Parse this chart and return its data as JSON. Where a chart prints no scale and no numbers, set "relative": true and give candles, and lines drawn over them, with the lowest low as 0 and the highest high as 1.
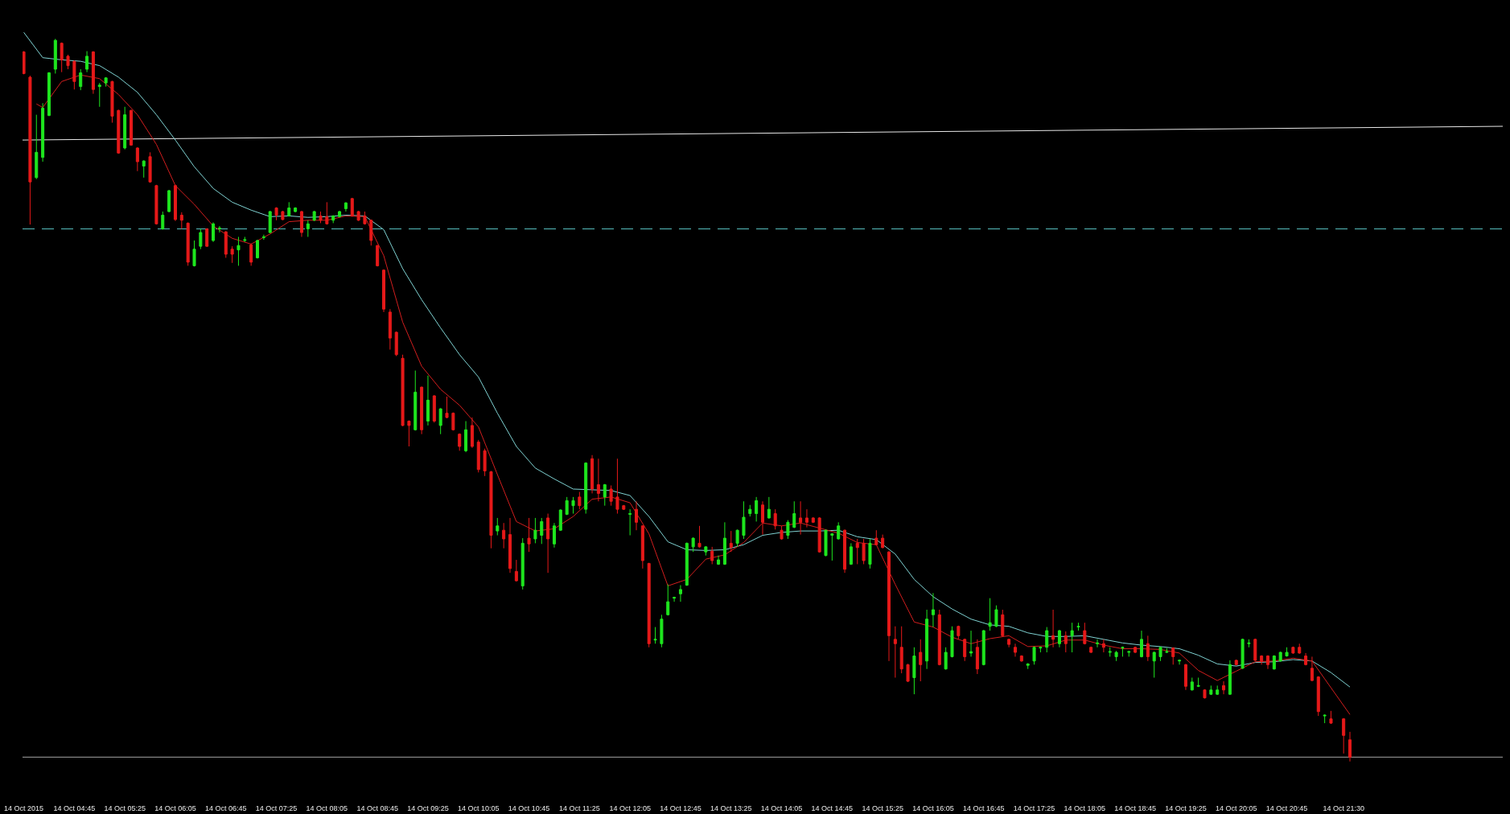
{
  "chart_data": {
    "type": "candlestick",
    "relative": true,
    "x": [
      "2015-10-14T04:05",
      "2015-10-14T04:10",
      "2015-10-14T04:15",
      "2015-10-14T04:20",
      "2015-10-14T04:25",
      "2015-10-14T04:30",
      "2015-10-14T04:35",
      "2015-10-14T04:40",
      "2015-10-14T04:45",
      "2015-10-14T04:50",
      "2015-10-14T04:55",
      "2015-10-14T05:00",
      "2015-10-14T05:05",
      "2015-10-14T05:10",
      "2015-10-14T05:15",
      "2015-10-14T05:20",
      "2015-10-14T05:25",
      "2015-10-14T05:30",
      "2015-10-14T05:35",
      "2015-10-14T05:40",
      "2015-10-14T05:45",
      "2015-10-14T05:50",
      "2015-10-14T05:55",
      "2015-10-14T06:00",
      "2015-10-14T06:05",
      "2015-10-14T06:10",
      "2015-10-14T06:15",
      "2015-10-14T06:20",
      "2015-10-14T06:25",
      "2015-10-14T06:30",
      "2015-10-14T06:35",
      "2015-10-14T06:40",
      "2015-10-14T06:45",
      "2015-10-14T06:50",
      "2015-10-14T06:55",
      "2015-10-14T07:00",
      "2015-10-14T07:05",
      "2015-10-14T07:10",
      "2015-10-14T07:15",
      "2015-10-14T07:20",
      "2015-10-14T07:25",
      "2015-10-14T07:30",
      "2015-10-14T07:35",
      "2015-10-14T07:40",
      "2015-10-14T07:45",
      "2015-10-14T07:50",
      "2015-10-14T07:55",
      "2015-10-14T08:00",
      "2015-10-14T08:05",
      "2015-10-14T08:10",
      "2015-10-14T08:15",
      "2015-10-14T08:20",
      "2015-10-14T08:25",
      "2015-10-14T08:30",
      "2015-10-14T08:35",
      "2015-10-14T08:40",
      "2015-10-14T08:45",
      "2015-10-14T08:50",
      "2015-10-14T08:55",
      "2015-10-14T09:00",
      "2015-10-14T09:05",
      "2015-10-14T09:10",
      "2015-10-14T09:15",
      "2015-10-14T09:20",
      "2015-10-14T09:25",
      "2015-10-14T09:30",
      "2015-10-14T09:35",
      "2015-10-14T09:40",
      "2015-10-14T09:45",
      "2015-10-14T09:50",
      "2015-10-14T09:55",
      "2015-10-14T10:00",
      "2015-10-14T10:05",
      "2015-10-14T10:10",
      "2015-10-14T10:15",
      "2015-10-14T10:20",
      "2015-10-14T10:25",
      "2015-10-14T10:30",
      "2015-10-14T10:35",
      "2015-10-14T10:40",
      "2015-10-14T10:45",
      "2015-10-14T10:50",
      "2015-10-14T10:55",
      "2015-10-14T11:00",
      "2015-10-14T11:05",
      "2015-10-14T11:10",
      "2015-10-14T11:15",
      "2015-10-14T11:20",
      "2015-10-14T11:25",
      "2015-10-14T11:30",
      "2015-10-14T11:35",
      "2015-10-14T11:40",
      "2015-10-14T11:45",
      "2015-10-14T11:50",
      "2015-10-14T11:55",
      "2015-10-14T12:00",
      "2015-10-14T12:05",
      "2015-10-14T12:10",
      "2015-10-14T12:15",
      "2015-10-14T12:20",
      "2015-10-14T12:25",
      "2015-10-14T12:30",
      "2015-10-14T12:35",
      "2015-10-14T12:40",
      "2015-10-14T12:45",
      "2015-10-14T12:50",
      "2015-10-14T12:55",
      "2015-10-14T13:00",
      "2015-10-14T13:05",
      "2015-10-14T13:10",
      "2015-10-14T13:15",
      "2015-10-14T13:20",
      "2015-10-14T13:25",
      "2015-10-14T13:30",
      "2015-10-14T13:35",
      "2015-10-14T13:40",
      "2015-10-14T13:45",
      "2015-10-14T13:50",
      "2015-10-14T13:55",
      "2015-10-14T14:00",
      "2015-10-14T14:05",
      "2015-10-14T14:10",
      "2015-10-14T14:15",
      "2015-10-14T14:20",
      "2015-10-14T14:25",
      "2015-10-14T14:30",
      "2015-10-14T14:35",
      "2015-10-14T14:40",
      "2015-10-14T14:45",
      "2015-10-14T14:50",
      "2015-10-14T14:55",
      "2015-10-14T15:00",
      "2015-10-14T15:05",
      "2015-10-14T15:10",
      "2015-10-14T15:15",
      "2015-10-14T15:20",
      "2015-10-14T15:25",
      "2015-10-14T15:30",
      "2015-10-14T15:35",
      "2015-10-14T15:40",
      "2015-10-14T15:45",
      "2015-10-14T15:50",
      "2015-10-14T15:55",
      "2015-10-14T16:00",
      "2015-10-14T16:05",
      "2015-10-14T16:10",
      "2015-10-14T16:15",
      "2015-10-14T16:20",
      "2015-10-14T16:25",
      "2015-10-14T16:30",
      "2015-10-14T16:35",
      "2015-10-14T16:40",
      "2015-10-14T16:45",
      "2015-10-14T16:50",
      "2015-10-14T16:55",
      "2015-10-14T17:00",
      "2015-10-14T17:05",
      "2015-10-14T17:10",
      "2015-10-14T17:15",
      "2015-10-14T17:20",
      "2015-10-14T17:25",
      "2015-10-14T17:30",
      "2015-10-14T17:35",
      "2015-10-14T17:40",
      "2015-10-14T17:45",
      "2015-10-14T17:50",
      "2015-10-14T17:55",
      "2015-10-14T18:00",
      "2015-10-14T18:05",
      "2015-10-14T18:10",
      "2015-10-14T18:15",
      "2015-10-14T18:20",
      "2015-10-14T18:25",
      "2015-10-14T18:30",
      "2015-10-14T18:35",
      "2015-10-14T18:40",
      "2015-10-14T18:45",
      "2015-10-14T18:50",
      "2015-10-14T18:55",
      "2015-10-14T19:00",
      "2015-10-14T19:05",
      "2015-10-14T19:10",
      "2015-10-14T19:15",
      "2015-10-14T19:20",
      "2015-10-14T19:25",
      "2015-10-14T19:30",
      "2015-10-14T19:35",
      "2015-10-14T19:40",
      "2015-10-14T19:45",
      "2015-10-14T19:50",
      "2015-10-14T19:55",
      "2015-10-14T20:00",
      "2015-10-14T20:05",
      "2015-10-14T20:10",
      "2015-10-14T20:15",
      "2015-10-14T20:20",
      "2015-10-14T20:25",
      "2015-10-14T20:30",
      "2015-10-14T20:35",
      "2015-10-14T20:40",
      "2015-10-14T20:45",
      "2015-10-14T20:50",
      "2015-10-14T20:55",
      "2015-10-14T21:00",
      "2015-10-14T21:05",
      "2015-10-14T21:10",
      "2015-10-14T21:15",
      "2015-10-14T21:20",
      "2015-10-14T21:30",
      "2015-10-14T21:35"
    ],
    "ohlc": [
      [
        0.982,
        0.983,
        0.951,
        0.952
      ],
      [
        0.947,
        0.949,
        0.743,
        0.802
      ],
      [
        0.808,
        0.895,
        0.806,
        0.843
      ],
      [
        0.836,
        0.911,
        0.83,
        0.904
      ],
      [
        0.894,
        0.954,
        0.893,
        0.953
      ],
      [
        0.958,
        1,
        0.952,
        0.998
      ],
      [
        0.994,
        0.995,
        0.954,
        0.971
      ],
      [
        0.976,
        0.978,
        0.958,
        0.963
      ],
      [
        0.969,
        0.97,
        0.93,
        0.941
      ],
      [
        0.934,
        0.958,
        0.929,
        0.953
      ],
      [
        0.958,
        0.983,
        0.954,
        0.976
      ],
      [
        0.982,
        0.983,
        0.924,
        0.93
      ],
      [
        0.934,
        0.939,
        0.906,
        0.936
      ],
      [
        0.939,
        0.947,
        0.934,
        0.946
      ],
      [
        0.941,
        0.942,
        0.884,
        0.893
      ],
      [
        0.901,
        0.902,
        0.841,
        0.842
      ],
      [
        0.849,
        0.906,
        0.847,
        0.895
      ],
      [
        0.901,
        0.902,
        0.852,
        0.853
      ],
      [
        0.849,
        0.85,
        0.817,
        0.83
      ],
      [
        0.824,
        0.832,
        0.808,
        0.831
      ],
      [
        0.837,
        0.843,
        0.801,
        0.802
      ],
      [
        0.797,
        0.798,
        0.743,
        0.744
      ],
      [
        0.737,
        0.761,
        0.736,
        0.756
      ],
      [
        0.761,
        0.791,
        0.76,
        0.79
      ],
      [
        0.797,
        0.798,
        0.748,
        0.75
      ],
      [
        0.756,
        0.76,
        0.737,
        0.749
      ],
      [
        0.745,
        0.746,
        0.686,
        0.691
      ],
      [
        0.686,
        0.721,
        0.685,
        0.709
      ],
      [
        0.713,
        0.737,
        0.709,
        0.732
      ],
      [
        0.737,
        0.738,
        0.712,
        0.713
      ],
      [
        0.721,
        0.746,
        0.719,
        0.744
      ],
      [
        0.737,
        0.741,
        0.732,
        0.738
      ],
      [
        0.733,
        0.734,
        0.697,
        0.702
      ],
      [
        0.709,
        0.713,
        0.69,
        0.702
      ],
      [
        0.708,
        0.726,
        0.686,
        0.714
      ],
      [
        0.721,
        0.726,
        0.719,
        0.722
      ],
      [
        0.715,
        0.717,
        0.686,
        0.691
      ],
      [
        0.697,
        0.722,
        0.696,
        0.721
      ],
      [
        0.725,
        0.729,
        0.722,
        0.726
      ],
      [
        0.732,
        0.762,
        0.731,
        0.761
      ],
      [
        0.766,
        0.767,
        0.749,
        0.756
      ],
      [
        0.761,
        0.762,
        0.749,
        0.75
      ],
      [
        0.755,
        0.774,
        0.754,
        0.766
      ],
      [
        0.761,
        0.767,
        0.76,
        0.766
      ],
      [
        0.761,
        0.762,
        0.726,
        0.732
      ],
      [
        0.737,
        0.749,
        0.726,
        0.744
      ],
      [
        0.749,
        0.762,
        0.748,
        0.761
      ],
      [
        0.755,
        0.761,
        0.745,
        0.749
      ],
      [
        0.754,
        0.774,
        0.743,
        0.744
      ],
      [
        0.749,
        0.756,
        0.745,
        0.755
      ],
      [
        0.754,
        0.762,
        0.753,
        0.761
      ],
      [
        0.765,
        0.774,
        0.761,
        0.773
      ],
      [
        0.779,
        0.78,
        0.754,
        0.755
      ],
      [
        0.761,
        0.762,
        0.748,
        0.749
      ],
      [
        0.755,
        0.761,
        0.743,
        0.744
      ],
      [
        0.749,
        0.75,
        0.714,
        0.721
      ],
      [
        0.714,
        0.715,
        0.685,
        0.686
      ],
      [
        0.68,
        0.681,
        0.622,
        0.626
      ],
      [
        0.622,
        0.626,
        0.57,
        0.586
      ],
      [
        0.594,
        0.595,
        0.561,
        0.563
      ],
      [
        0.558,
        0.563,
        0.464,
        0.465
      ],
      [
        0.471,
        0.472,
        0.436,
        0.465
      ],
      [
        0.459,
        0.541,
        0.458,
        0.511
      ],
      [
        0.518,
        0.519,
        0.453,
        0.459
      ],
      [
        0.471,
        0.534,
        0.465,
        0.5
      ],
      [
        0.506,
        0.507,
        0.469,
        0.471
      ],
      [
        0.465,
        0.489,
        0.453,
        0.488
      ],
      [
        0.482,
        0.505,
        0.475,
        0.476
      ],
      [
        0.482,
        0.483,
        0.458,
        0.459
      ],
      [
        0.453,
        0.454,
        0.43,
        0.436
      ],
      [
        0.43,
        0.471,
        0.428,
        0.459
      ],
      [
        0.465,
        0.476,
        0.434,
        0.436
      ],
      [
        0.442,
        0.445,
        0.4,
        0.404
      ],
      [
        0.43,
        0.433,
        0.395,
        0.402
      ],
      [
        0.401,
        0.402,
        0.295,
        0.313
      ],
      [
        0.319,
        0.337,
        0.313,
        0.326
      ],
      [
        0.32,
        0.33,
        0.295,
        0.308
      ],
      [
        0.314,
        0.337,
        0.261,
        0.267
      ],
      [
        0.263,
        0.279,
        0.249,
        0.25
      ],
      [
        0.243,
        0.309,
        0.238,
        0.302
      ],
      [
        0.309,
        0.337,
        0.29,
        0.301
      ],
      [
        0.308,
        0.337,
        0.302,
        0.32
      ],
      [
        0.313,
        0.337,
        0.301,
        0.332
      ],
      [
        0.337,
        0.343,
        0.261,
        0.308
      ],
      [
        0.301,
        0.33,
        0.296,
        0.326
      ],
      [
        0.32,
        0.349,
        0.319,
        0.348
      ],
      [
        0.342,
        0.366,
        0.341,
        0.361
      ],
      [
        0.354,
        0.366,
        0.343,
        0.361
      ],
      [
        0.366,
        0.373,
        0.349,
        0.354
      ],
      [
        0.349,
        0.414,
        0.343,
        0.413
      ],
      [
        0.419,
        0.424,
        0.371,
        0.377
      ],
      [
        0.383,
        0.419,
        0.36,
        0.371
      ],
      [
        0.366,
        0.384,
        0.354,
        0.383
      ],
      [
        0.377,
        0.382,
        0.354,
        0.36
      ],
      [
        0.366,
        0.419,
        0.343,
        0.349
      ],
      [
        0.354,
        0.355,
        0.348,
        0.349
      ],
      [
        0.342,
        0.349,
        0.313,
        0.343
      ],
      [
        0.349,
        0.36,
        0.32,
        0.331
      ],
      [
        0.326,
        0.327,
        0.267,
        0.278
      ],
      [
        0.274,
        0.275,
        0.158,
        0.163
      ],
      [
        0.168,
        0.186,
        0.163,
        0.169
      ],
      [
        0.163,
        0.203,
        0.158,
        0.197
      ],
      [
        0.203,
        0.245,
        0.202,
        0.221
      ],
      [
        0.226,
        0.228,
        0.221,
        0.227
      ],
      [
        0.232,
        0.244,
        0.221,
        0.238
      ],
      [
        0.244,
        0.303,
        0.243,
        0.302
      ],
      [
        0.297,
        0.31,
        0.29,
        0.309
      ],
      [
        0.302,
        0.326,
        0.296,
        0.297
      ],
      [
        0.29,
        0.298,
        0.285,
        0.297
      ],
      [
        0.291,
        0.297,
        0.273,
        0.278
      ],
      [
        0.273,
        0.285,
        0.272,
        0.279
      ],
      [
        0.273,
        0.331,
        0.272,
        0.309
      ],
      [
        0.302,
        0.319,
        0.29,
        0.296
      ],
      [
        0.302,
        0.321,
        0.297,
        0.32
      ],
      [
        0.313,
        0.36,
        0.308,
        0.338
      ],
      [
        0.343,
        0.355,
        0.339,
        0.349
      ],
      [
        0.343,
        0.366,
        0.332,
        0.361
      ],
      [
        0.355,
        0.36,
        0.314,
        0.331
      ],
      [
        0.337,
        0.366,
        0.336,
        0.349
      ],
      [
        0.343,
        0.349,
        0.321,
        0.326
      ],
      [
        0.32,
        0.326,
        0.307,
        0.308
      ],
      [
        0.313,
        0.334,
        0.308,
        0.331
      ],
      [
        0.324,
        0.36,
        0.323,
        0.343
      ],
      [
        0.337,
        0.36,
        0.314,
        0.331
      ],
      [
        0.337,
        0.349,
        0.324,
        0.331
      ],
      [
        0.337,
        0.338,
        0.33,
        0.331
      ],
      [
        0.337,
        0.338,
        0.289,
        0.29
      ],
      [
        0.285,
        0.321,
        0.284,
        0.32
      ],
      [
        0.313,
        0.316,
        0.278,
        0.315
      ],
      [
        0.308,
        0.331,
        0.307,
        0.326
      ],
      [
        0.32,
        0.321,
        0.261,
        0.266
      ],
      [
        0.273,
        0.302,
        0.272,
        0.297
      ],
      [
        0.302,
        0.308,
        0.273,
        0.296
      ],
      [
        0.302,
        0.308,
        0.273,
        0.278
      ],
      [
        0.273,
        0.308,
        0.267,
        0.302
      ],
      [
        0.309,
        0.32,
        0.299,
        0.3
      ],
      [
        0.309,
        0.314,
        0.295,
        0.296
      ],
      [
        0.29,
        0.291,
        0.139,
        0.174
      ],
      [
        0.169,
        0.187,
        0.116,
        0.163
      ],
      [
        0.158,
        0.187,
        0.122,
        0.128
      ],
      [
        0.134,
        0.135,
        0.11,
        0.111
      ],
      [
        0.116,
        0.158,
        0.093,
        0.146
      ],
      [
        0.151,
        0.169,
        0.111,
        0.134
      ],
      [
        0.139,
        0.21,
        0.128,
        0.197
      ],
      [
        0.203,
        0.233,
        0.186,
        0.21
      ],
      [
        0.203,
        0.21,
        0.133,
        0.134
      ],
      [
        0.128,
        0.158,
        0.127,
        0.151
      ],
      [
        0.145,
        0.187,
        0.144,
        0.181
      ],
      [
        0.187,
        0.188,
        0.169,
        0.174
      ],
      [
        0.169,
        0.17,
        0.139,
        0.145
      ],
      [
        0.15,
        0.181,
        0.145,
        0.152
      ],
      [
        0.158,
        0.169,
        0.121,
        0.128
      ],
      [
        0.134,
        0.182,
        0.133,
        0.181
      ],
      [
        0.187,
        0.226,
        0.181,
        0.192
      ],
      [
        0.187,
        0.216,
        0.186,
        0.21
      ],
      [
        0.203,
        0.21,
        0.173,
        0.174
      ],
      [
        0.169,
        0.17,
        0.158,
        0.162
      ],
      [
        0.158,
        0.163,
        0.145,
        0.151
      ],
      [
        0.146,
        0.147,
        0.138,
        0.139
      ],
      [
        0.133,
        0.136,
        0.128,
        0.135
      ],
      [
        0.139,
        0.159,
        0.134,
        0.158
      ],
      [
        0.157,
        0.159,
        0.151,
        0.158
      ],
      [
        0.158,
        0.186,
        0.151,
        0.181
      ],
      [
        0.174,
        0.21,
        0.158,
        0.169
      ],
      [
        0.163,
        0.182,
        0.158,
        0.181
      ],
      [
        0.174,
        0.18,
        0.151,
        0.163
      ],
      [
        0.174,
        0.192,
        0.151,
        0.181
      ],
      [
        0.186,
        0.192,
        0.181,
        0.187
      ],
      [
        0.181,
        0.192,
        0.162,
        0.163
      ],
      [
        0.158,
        0.159,
        0.15,
        0.151
      ],
      [
        0.163,
        0.169,
        0.158,
        0.164
      ],
      [
        0.163,
        0.169,
        0.151,
        0.158
      ],
      [
        0.151,
        0.158,
        0.145,
        0.152
      ],
      [
        0.145,
        0.153,
        0.139,
        0.151
      ],
      [
        0.157,
        0.159,
        0.145,
        0.158
      ],
      [
        0.151,
        0.153,
        0.145,
        0.152
      ],
      [
        0.158,
        0.159,
        0.15,
        0.151
      ],
      [
        0.145,
        0.181,
        0.144,
        0.169
      ],
      [
        0.163,
        0.174,
        0.139,
        0.145
      ],
      [
        0.139,
        0.152,
        0.116,
        0.151
      ],
      [
        0.145,
        0.159,
        0.139,
        0.158
      ],
      [
        0.151,
        0.157,
        0.15,
        0.152
      ],
      [
        0.157,
        0.158,
        0.134,
        0.145
      ],
      [
        0.139,
        0.141,
        0.134,
        0.14
      ],
      [
        0.134,
        0.135,
        0.099,
        0.104
      ],
      [
        0.099,
        0.116,
        0.098,
        0.11
      ],
      [
        0.104,
        0.116,
        0.103,
        0.105
      ],
      [
        0.099,
        0.1,
        0.087,
        0.088
      ],
      [
        0.093,
        0.105,
        0.092,
        0.099
      ],
      [
        0.093,
        0.105,
        0.092,
        0.099
      ],
      [
        0.105,
        0.111,
        0.093,
        0.099
      ],
      [
        0.093,
        0.14,
        0.092,
        0.134
      ],
      [
        0.14,
        0.141,
        0.133,
        0.134
      ],
      [
        0.129,
        0.17,
        0.128,
        0.169
      ],
      [
        0.163,
        0.169,
        0.158,
        0.164
      ],
      [
        0.169,
        0.17,
        0.139,
        0.14
      ],
      [
        0.146,
        0.147,
        0.134,
        0.139
      ],
      [
        0.146,
        0.147,
        0.128,
        0.134
      ],
      [
        0.128,
        0.147,
        0.127,
        0.146
      ],
      [
        0.139,
        0.152,
        0.138,
        0.151
      ],
      [
        0.146,
        0.158,
        0.145,
        0.151
      ],
      [
        0.158,
        0.159,
        0.149,
        0.15
      ],
      [
        0.158,
        0.163,
        0.149,
        0.15
      ],
      [
        0.146,
        0.15,
        0.133,
        0.134
      ],
      [
        0.129,
        0.145,
        0.111,
        0.112
      ],
      [
        0.117,
        0.118,
        0.063,
        0.069
      ],
      [
        0.063,
        0.065,
        0.053,
        0.064
      ],
      [
        0.059,
        0.07,
        0.052,
        0.053
      ],
      [
        0.059,
        0.06,
        0.011,
        0.036
      ],
      [
        0.03,
        0.041,
        0,
        0.006
      ]
    ],
    "colors": [
      "#e61919",
      "#e61919",
      "#1ee61e",
      "#1ee61e",
      "#1ee61e",
      "#1ee61e",
      "#e61919",
      "#e61919",
      "#e61919",
      "#1ee61e",
      "#1ee61e",
      "#e61919",
      "#1ee61e",
      "#1ee61e",
      "#e61919",
      "#e61919",
      "#1ee61e",
      "#e61919",
      "#e61919",
      "#1ee61e",
      "#e61919",
      "#e61919",
      "#1ee61e",
      "#1ee61e",
      "#e61919",
      "#e61919",
      "#e61919",
      "#1ee61e",
      "#1ee61e",
      "#e61919",
      "#1ee61e",
      "#1ee61e",
      "#e61919",
      "#e61919",
      "#1ee61e",
      "#1ee61e",
      "#e61919",
      "#1ee61e",
      "#1ee61e",
      "#1ee61e",
      "#e61919",
      "#e61919",
      "#1ee61e",
      "#1ee61e",
      "#e61919",
      "#1ee61e",
      "#1ee61e",
      "#e61919",
      "#e61919",
      "#1ee61e",
      "#1ee61e",
      "#1ee61e",
      "#e61919",
      "#e61919",
      "#e61919",
      "#e61919",
      "#e61919",
      "#e61919",
      "#e61919",
      "#e61919",
      "#e61919",
      "#e61919",
      "#1ee61e",
      "#e61919",
      "#1ee61e",
      "#e61919",
      "#1ee61e",
      "#e61919",
      "#e61919",
      "#e61919",
      "#1ee61e",
      "#e61919",
      "#e61919",
      "#e61919",
      "#e61919",
      "#1ee61e",
      "#e61919",
      "#e61919",
      "#e61919",
      "#1ee61e",
      "#e61919",
      "#1ee61e",
      "#1ee61e",
      "#e61919",
      "#1ee61e",
      "#1ee61e",
      "#1ee61e",
      "#1ee61e",
      "#e61919",
      "#1ee61e",
      "#e61919",
      "#e61919",
      "#1ee61e",
      "#e61919",
      "#e61919",
      "#e61919",
      "#1ee61e",
      "#e61919",
      "#e61919",
      "#e61919",
      "#1ee61e",
      "#1ee61e",
      "#1ee61e",
      "#1ee61e",
      "#1ee61e",
      "#1ee61e",
      "#1ee61e",
      "#e61919",
      "#1ee61e",
      "#e61919",
      "#1ee61e",
      "#1ee61e",
      "#e61919",
      "#1ee61e",
      "#1ee61e",
      "#1ee61e",
      "#1ee61e",
      "#e61919",
      "#1ee61e",
      "#e61919",
      "#e61919",
      "#1ee61e",
      "#1ee61e",
      "#e61919",
      "#e61919",
      "#e61919",
      "#e61919",
      "#1ee61e",
      "#1ee61e",
      "#1ee61e",
      "#e61919",
      "#1ee61e",
      "#e61919",
      "#e61919",
      "#1ee61e",
      "#e61919",
      "#e61919",
      "#e61919",
      "#e61919",
      "#e61919",
      "#e61919",
      "#1ee61e",
      "#e61919",
      "#1ee61e",
      "#1ee61e",
      "#e61919",
      "#1ee61e",
      "#1ee61e",
      "#e61919",
      "#e61919",
      "#1ee61e",
      "#e61919",
      "#1ee61e",
      "#1ee61e",
      "#1ee61e",
      "#e61919",
      "#e61919",
      "#e61919",
      "#e61919",
      "#1ee61e",
      "#1ee61e",
      "#1ee61e",
      "#1ee61e",
      "#e61919",
      "#1ee61e",
      "#e61919",
      "#1ee61e",
      "#1ee61e",
      "#e61919",
      "#e61919",
      "#1ee61e",
      "#e61919",
      "#1ee61e",
      "#1ee61e",
      "#1ee61e",
      "#1ee61e",
      "#e61919",
      "#1ee61e",
      "#e61919",
      "#1ee61e",
      "#1ee61e",
      "#1ee61e",
      "#e61919",
      "#1ee61e",
      "#e61919",
      "#1ee61e",
      "#1ee61e",
      "#e61919",
      "#1ee61e",
      "#1ee61e",
      "#e61919",
      "#1ee61e",
      "#e61919",
      "#1ee61e",
      "#1ee61e",
      "#e61919",
      "#e61919",
      "#e61919",
      "#1ee61e",
      "#1ee61e",
      "#1ee61e",
      "#e61919",
      "#e61919",
      "#e61919",
      "#e61919",
      "#e61919",
      "#1ee61e",
      "#e61919",
      "#e61919",
      "#e61919"
    ],
    "series": [
      {
        "type": "line",
        "color": "#e8e8e8",
        "x": [
          "2015-10-14T04:04",
          "2015-10-14T23:36"
        ],
        "values": [
          0.86,
          0.879
        ]
      },
      {
        "type": "line",
        "color": "#7fd2d2",
        "x": [
          "2015-10-14T04:05",
          "2015-10-14T04:20",
          "2015-10-14T04:35",
          "2015-10-14T04:50",
          "2015-10-14T05:05",
          "2015-10-14T05:20",
          "2015-10-14T05:35",
          "2015-10-14T05:50",
          "2015-10-14T06:05",
          "2015-10-14T06:20",
          "2015-10-14T06:35",
          "2015-10-14T06:50",
          "2015-10-14T07:05",
          "2015-10-14T07:20",
          "2015-10-14T07:35",
          "2015-10-14T07:50",
          "2015-10-14T08:05",
          "2015-10-14T08:20",
          "2015-10-14T08:35",
          "2015-10-14T08:50",
          "2015-10-14T09:05",
          "2015-10-14T09:20",
          "2015-10-14T09:35",
          "2015-10-14T09:50",
          "2015-10-14T10:05",
          "2015-10-14T10:20",
          "2015-10-14T10:35",
          "2015-10-14T10:50",
          "2015-10-14T11:05",
          "2015-10-14T11:20",
          "2015-10-14T11:35",
          "2015-10-14T11:50",
          "2015-10-14T12:05",
          "2015-10-14T12:20",
          "2015-10-14T12:35",
          "2015-10-14T12:50",
          "2015-10-14T13:05",
          "2015-10-14T13:20",
          "2015-10-14T13:35",
          "2015-10-14T13:50",
          "2015-10-14T14:05",
          "2015-10-14T14:20",
          "2015-10-14T14:35",
          "2015-10-14T14:50",
          "2015-10-14T15:05",
          "2015-10-14T15:20",
          "2015-10-14T15:35",
          "2015-10-14T15:50",
          "2015-10-14T16:05",
          "2015-10-14T16:20",
          "2015-10-14T16:35",
          "2015-10-14T16:50",
          "2015-10-14T17:05",
          "2015-10-14T17:20",
          "2015-10-14T17:35",
          "2015-10-14T17:50",
          "2015-10-14T18:05",
          "2015-10-14T18:20",
          "2015-10-14T18:35",
          "2015-10-14T18:50",
          "2015-10-14T19:05",
          "2015-10-14T19:20",
          "2015-10-14T19:35",
          "2015-10-14T19:50",
          "2015-10-14T20:05",
          "2015-10-14T20:20",
          "2015-10-14T20:35",
          "2015-10-14T20:50",
          "2015-10-14T21:05",
          "2015-10-14T21:20",
          "2015-10-14T21:35"
        ],
        "values": [
          1.009,
          0.974,
          0.971,
          0.969,
          0.963,
          0.947,
          0.926,
          0.895,
          0.86,
          0.823,
          0.793,
          0.774,
          0.763,
          0.754,
          0.755,
          0.753,
          0.754,
          0.756,
          0.755,
          0.736,
          0.682,
          0.639,
          0.6,
          0.563,
          0.532,
          0.482,
          0.436,
          0.406,
          0.391,
          0.377,
          0.376,
          0.375,
          0.368,
          0.339,
          0.304,
          0.293,
          0.292,
          0.293,
          0.3,
          0.313,
          0.317,
          0.319,
          0.319,
          0.32,
          0.311,
          0.307,
          0.287,
          0.252,
          0.228,
          0.211,
          0.197,
          0.189,
          0.187,
          0.178,
          0.173,
          0.173,
          0.174,
          0.169,
          0.164,
          0.161,
          0.159,
          0.156,
          0.147,
          0.135,
          0.132,
          0.137,
          0.138,
          0.141,
          0.139,
          0.123,
          0.103
        ]
      },
      {
        "type": "line",
        "color": "#d21e1e",
        "x": [
          "2015-10-14T04:15",
          "2015-10-14T04:20",
          "2015-10-14T04:35",
          "2015-10-14T04:50",
          "2015-10-14T05:05",
          "2015-10-14T05:20",
          "2015-10-14T05:35",
          "2015-10-14T05:50",
          "2015-10-14T06:05",
          "2015-10-14T06:20",
          "2015-10-14T06:35",
          "2015-10-14T06:50",
          "2015-10-14T07:05",
          "2015-10-14T07:20",
          "2015-10-14T07:35",
          "2015-10-14T07:50",
          "2015-10-14T08:05",
          "2015-10-14T08:20",
          "2015-10-14T08:35",
          "2015-10-14T08:50",
          "2015-10-14T09:05",
          "2015-10-14T09:20",
          "2015-10-14T09:35",
          "2015-10-14T09:50",
          "2015-10-14T10:05",
          "2015-10-14T10:20",
          "2015-10-14T10:35",
          "2015-10-14T10:50",
          "2015-10-14T11:05",
          "2015-10-14T11:20",
          "2015-10-14T11:35",
          "2015-10-14T11:50",
          "2015-10-14T12:05",
          "2015-10-14T12:20",
          "2015-10-14T12:35",
          "2015-10-14T12:50",
          "2015-10-14T13:05",
          "2015-10-14T13:20",
          "2015-10-14T13:35",
          "2015-10-14T13:50",
          "2015-10-14T14:05",
          "2015-10-14T14:20",
          "2015-10-14T14:35",
          "2015-10-14T14:50",
          "2015-10-14T15:05",
          "2015-10-14T15:20",
          "2015-10-14T15:35",
          "2015-10-14T15:50",
          "2015-10-14T16:05",
          "2015-10-14T16:20",
          "2015-10-14T16:35",
          "2015-10-14T16:50",
          "2015-10-14T17:05",
          "2015-10-14T17:20",
          "2015-10-14T17:35",
          "2015-10-14T17:50",
          "2015-10-14T18:05",
          "2015-10-14T18:20",
          "2015-10-14T18:35",
          "2015-10-14T18:50",
          "2015-10-14T19:05",
          "2015-10-14T19:20",
          "2015-10-14T19:35",
          "2015-10-14T19:50",
          "2015-10-14T20:05",
          "2015-10-14T20:20",
          "2015-10-14T20:35",
          "2015-10-14T20:50",
          "2015-10-14T21:05",
          "2015-10-14T21:20",
          "2015-10-14T21:35"
        ],
        "values": [
          0.91,
          0.905,
          0.941,
          0.95,
          0.945,
          0.923,
          0.895,
          0.854,
          0.797,
          0.771,
          0.741,
          0.724,
          0.716,
          0.73,
          0.747,
          0.749,
          0.749,
          0.755,
          0.754,
          0.7,
          0.608,
          0.547,
          0.515,
          0.493,
          0.463,
          0.397,
          0.332,
          0.319,
          0.322,
          0.339,
          0.363,
          0.366,
          0.358,
          0.315,
          0.243,
          0.252,
          0.28,
          0.286,
          0.303,
          0.33,
          0.326,
          0.33,
          0.323,
          0.316,
          0.303,
          0.3,
          0.245,
          0.193,
          0.186,
          0.172,
          0.163,
          0.17,
          0.174,
          0.159,
          0.16,
          0.168,
          0.168,
          0.161,
          0.156,
          0.156,
          0.155,
          0.15,
          0.126,
          0.112,
          0.125,
          0.138,
          0.139,
          0.143,
          0.139,
          0.102,
          0.065
        ]
      }
    ],
    "xlim": [
      "2015-10-14T04:04",
      "2015-10-14T23:36"
    ],
    "xticks": [
      {
        "value": "2015-10-14T04:05",
        "label": "14 Oct 2015"
      },
      {
        "value": "2015-10-14T04:45",
        "label": "14 Oct 04:45"
      },
      {
        "value": "2015-10-14T05:25",
        "label": "14 Oct 05:25"
      },
      {
        "value": "2015-10-14T06:05",
        "label": "14 Oct 06:05"
      },
      {
        "value": "2015-10-14T06:45",
        "label": "14 Oct 06:45"
      },
      {
        "value": "2015-10-14T07:25",
        "label": "14 Oct 07:25"
      },
      {
        "value": "2015-10-14T08:05",
        "label": "14 Oct 08:05"
      },
      {
        "value": "2015-10-14T08:45",
        "label": "14 Oct 08:45"
      },
      {
        "value": "2015-10-14T09:25",
        "label": "14 Oct 09:25"
      },
      {
        "value": "2015-10-14T10:05",
        "label": "14 Oct 10:05"
      },
      {
        "value": "2015-10-14T10:45",
        "label": "14 Oct 10:45"
      },
      {
        "value": "2015-10-14T11:25",
        "label": "14 Oct 11:25"
      },
      {
        "value": "2015-10-14T12:05",
        "label": "14 Oct 12:05"
      },
      {
        "value": "2015-10-14T12:45",
        "label": "14 Oct 12:45"
      },
      {
        "value": "2015-10-14T13:25",
        "label": "14 Oct 13:25"
      },
      {
        "value": "2015-10-14T14:05",
        "label": "14 Oct 14:05"
      },
      {
        "value": "2015-10-14T14:45",
        "label": "14 Oct 14:45"
      },
      {
        "value": "2015-10-14T15:25",
        "label": "14 Oct 15:25"
      },
      {
        "value": "2015-10-14T16:05",
        "label": "14 Oct 16:05"
      },
      {
        "value": "2015-10-14T16:45",
        "label": "14 Oct 16:45"
      },
      {
        "value": "2015-10-14T17:25",
        "label": "14 Oct 17:25"
      },
      {
        "value": "2015-10-14T18:05",
        "label": "14 Oct 18:05"
      },
      {
        "value": "2015-10-14T18:45",
        "label": "14 Oct 18:45"
      },
      {
        "value": "2015-10-14T19:25",
        "label": "14 Oct 19:25"
      },
      {
        "value": "2015-10-14T20:05",
        "label": "14 Oct 20:05"
      },
      {
        "value": "2015-10-14T20:45",
        "label": "14 Oct 20:45"
      },
      {
        "value": "2015-10-14T21:30",
        "label": "14 Oct 21:30"
      }
    ],
    "ref_lines": [
      {
        "axis": "y",
        "value": 0.737,
        "color": "#5ac4c4",
        "line_style": "dashed"
      },
      {
        "axis": "y",
        "value": 0.006,
        "color": "#a6a6a6"
      }
    ],
    "tick_labels": "x"
  }
}
